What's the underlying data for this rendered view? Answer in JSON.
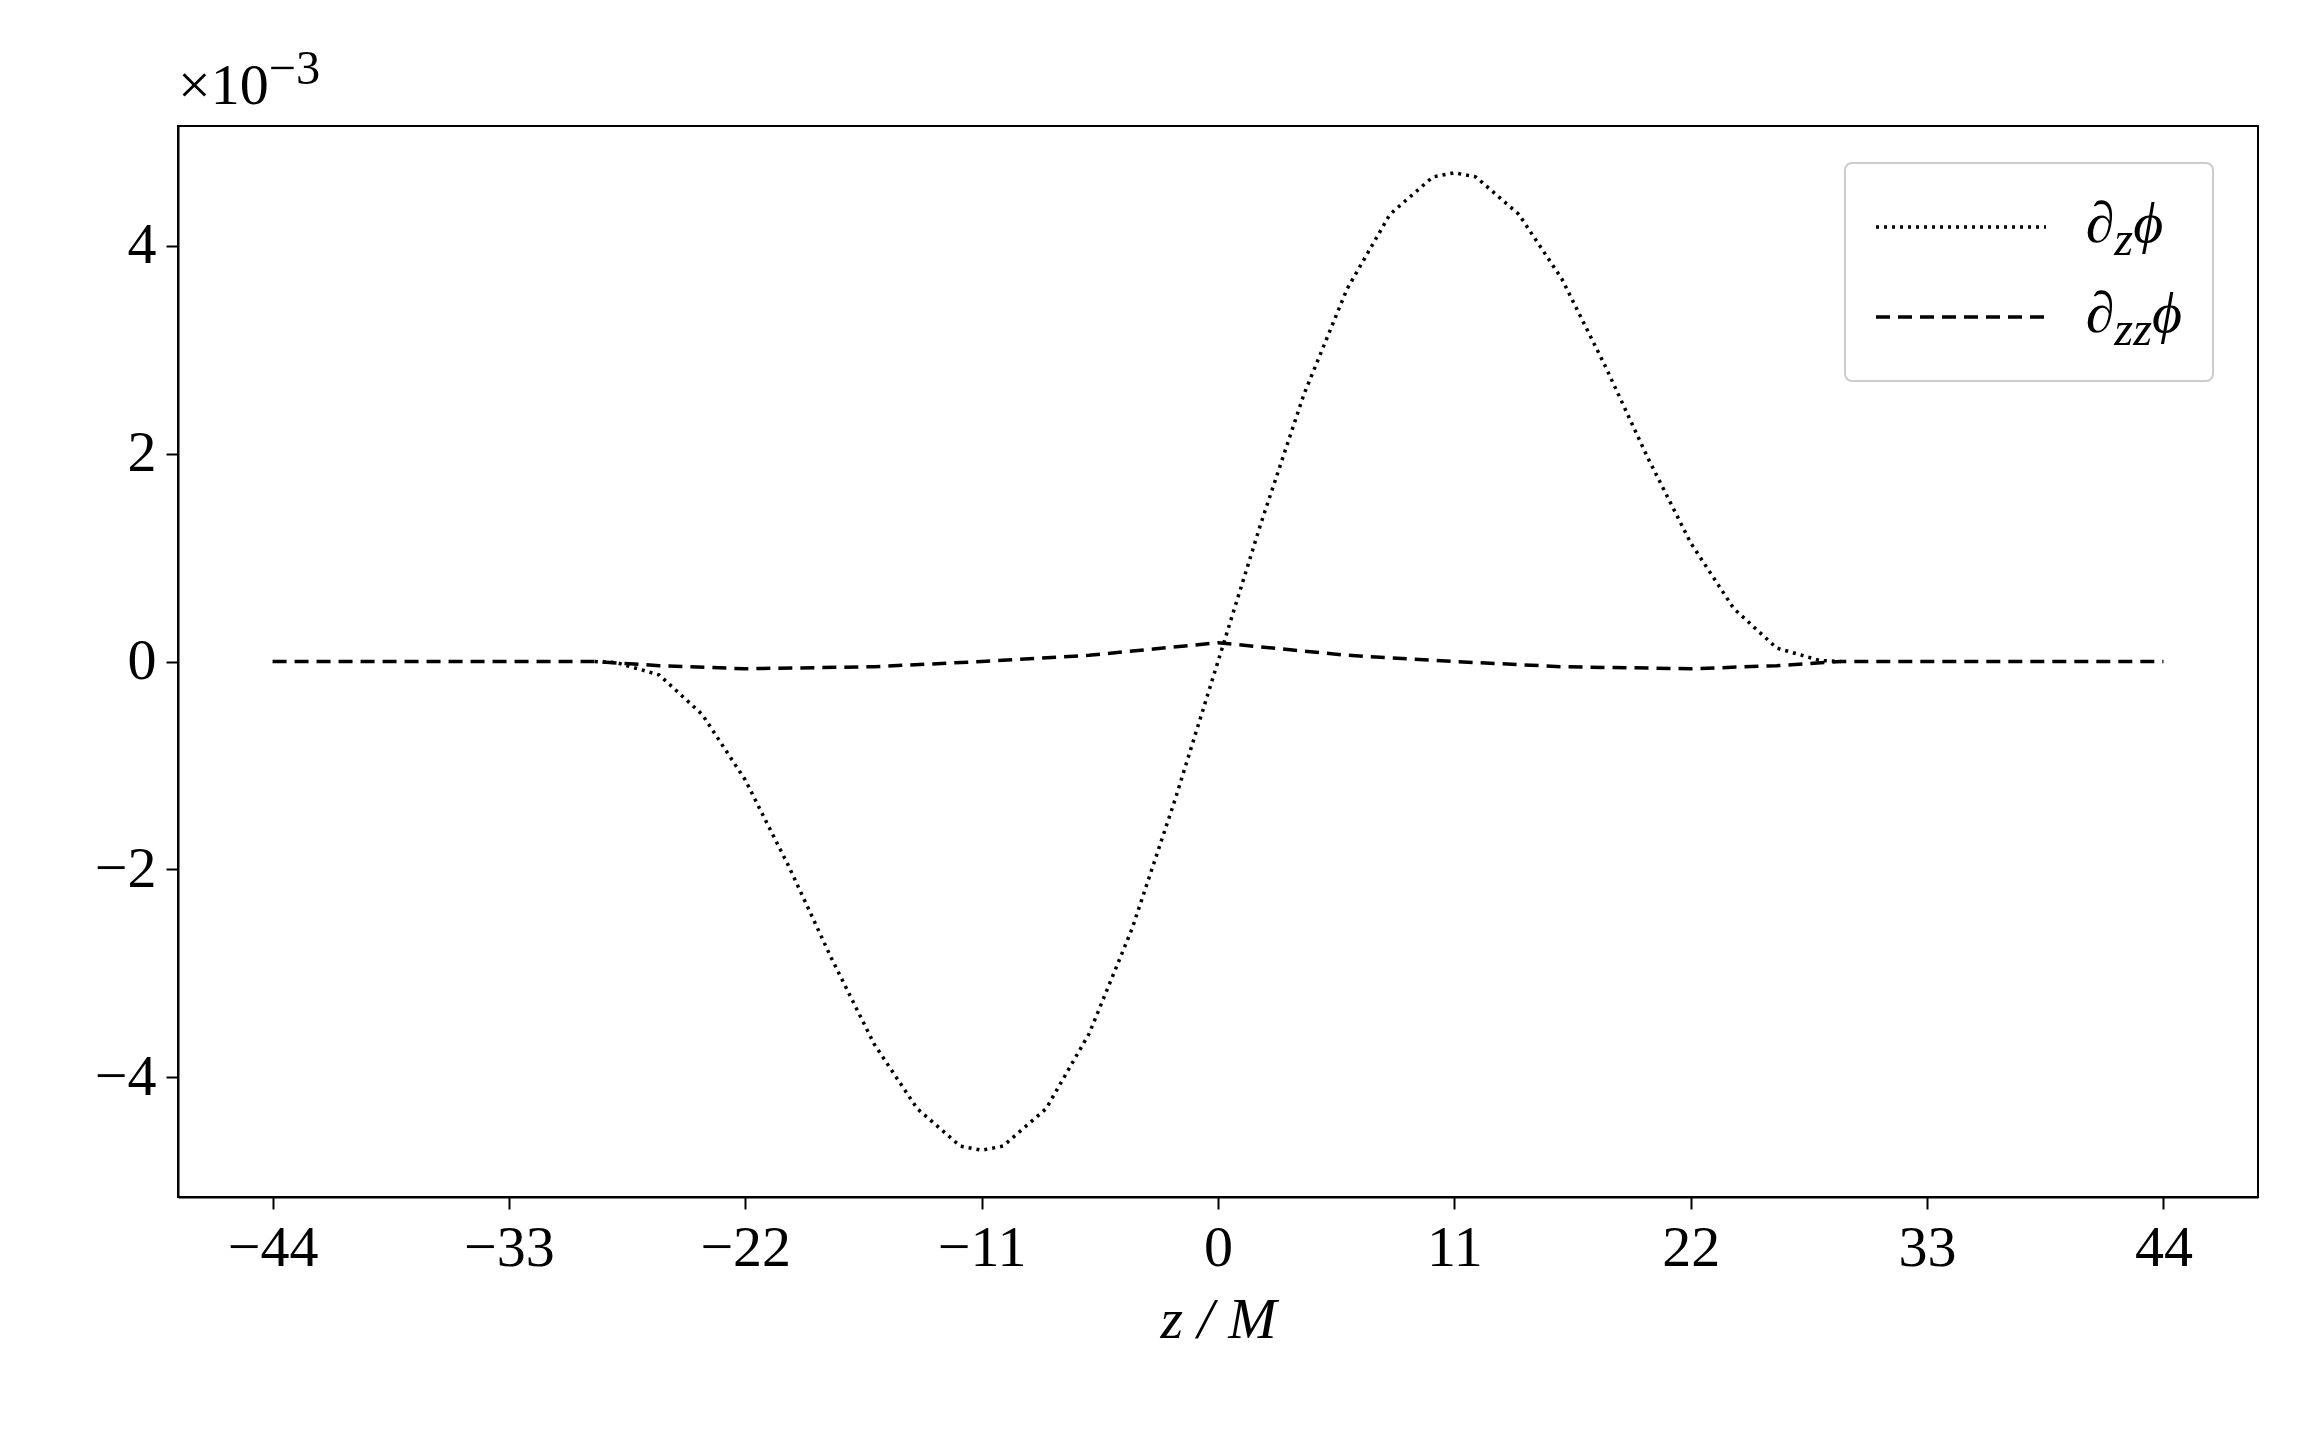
{
  "chart_data": {
    "type": "line",
    "xlabel": "z / M",
    "annotations": [
      "×10$^{−3}$"
    ],
    "xlim": [
      -48.4,
      48.4
    ],
    "xticks": [
      {
        "value": -44,
        "label": "−44"
      },
      {
        "value": -33,
        "label": "−33"
      },
      {
        "value": -22,
        "label": "−22"
      },
      {
        "value": -11,
        "label": "−11"
      },
      0,
      11,
      22,
      33,
      44
    ],
    "ylim": [
      -5.15,
      5.15
    ],
    "yticks": [
      {
        "value": -4,
        "label": "−4"
      },
      {
        "value": -2,
        "label": "−2"
      },
      0,
      2,
      4
    ],
    "legend": "top right",
    "marker": "none",
    "series": [
      {
        "name": "∂$_{z}$ϕ",
        "color": "#000000",
        "line_style": "dotted",
        "x": [
          -29,
          -28,
          -26,
          -24,
          -22,
          -20,
          -18,
          -16,
          -14,
          -12,
          -11,
          -10,
          -8,
          -6,
          -4,
          -2,
          0,
          2,
          4,
          6,
          8,
          10,
          11,
          12,
          14,
          16,
          18,
          20,
          22,
          24,
          26,
          28,
          29
        ],
        "values": [
          0,
          -0.01,
          -0.13,
          -0.51,
          -1.14,
          -1.96,
          -2.85,
          -3.68,
          -4.3,
          -4.66,
          -4.7,
          -4.66,
          -4.3,
          -3.58,
          -2.57,
          -1.33,
          0,
          1.33,
          2.57,
          3.58,
          4.3,
          4.66,
          4.7,
          4.66,
          4.3,
          3.68,
          2.85,
          1.96,
          1.14,
          0.51,
          0.13,
          0.01,
          0
        ]
      },
      {
        "name": "∂$_{zz}$ϕ",
        "color": "#000000",
        "line_style": "dashed",
        "x": [
          -44,
          -36,
          -29,
          -26,
          -22,
          -16,
          -11,
          -6,
          -3,
          0,
          3,
          6,
          11,
          16,
          22,
          26,
          29,
          36,
          44
        ],
        "values": [
          0,
          0,
          0,
          -0.04,
          -0.07,
          -0.05,
          0,
          0.06,
          0.12,
          0.18,
          0.12,
          0.06,
          0,
          -0.05,
          -0.07,
          -0.04,
          0,
          0,
          0
        ]
      }
    ]
  }
}
